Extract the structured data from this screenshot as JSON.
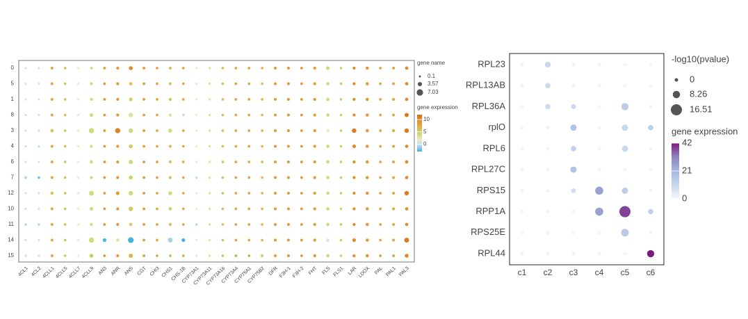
{
  "chart_data": [
    {
      "type": "dotplot",
      "rows": [
        "0",
        "5",
        "1",
        "8",
        "3",
        "4",
        "6",
        "7",
        "12",
        "10",
        "11",
        "14",
        "15"
      ],
      "columns": [
        "4CL1",
        "4CL2",
        "4CLL1",
        "4CLL5",
        "4CLL7",
        "4CLL9",
        "AN3",
        "ANR",
        "ANS",
        "CGT",
        "CHI3",
        "CHS1",
        "CHS-1B",
        "CYP73A1",
        "CYP73A11",
        "CYP73A16",
        "CYP73A4",
        "CYP75A1",
        "CYP75B2",
        "DFR",
        "F3H-1",
        "F3H-2",
        "FHT",
        "FLS",
        "FLS1",
        "LAR",
        "LDOX",
        "PAL",
        "PAL1",
        "PAL3"
      ],
      "size_title": "gene name",
      "size_ticks": [
        0.1,
        3.57,
        7.03
      ],
      "color_title": "gene expression",
      "clim": [
        -3,
        12
      ],
      "cticks": [
        10,
        5,
        0
      ],
      "colormap": [
        "#46b1e1",
        "#b8dde9",
        "#ecebc4",
        "#c7d66a",
        "#e6b150",
        "#e3902c",
        "#d3701a"
      ],
      "size": [
        [
          0.5,
          0.4,
          1.2,
          0.8,
          0.5,
          1,
          1,
          1.5,
          3,
          1,
          1,
          1.5,
          0.8,
          0.4,
          0.6,
          1,
          1,
          1,
          0.8,
          1.2,
          1.2,
          1,
          1.5,
          2.5,
          0.8,
          1.5,
          1.8,
          1,
          1.2,
          2
        ],
        [
          0.5,
          0.4,
          1.2,
          0.8,
          0.5,
          1.5,
          1,
          1.5,
          2,
          1,
          1,
          1.5,
          0.8,
          0.4,
          0.6,
          1,
          1,
          1,
          0.8,
          1.2,
          1.2,
          1,
          1.5,
          2,
          0.8,
          1.5,
          1.8,
          1,
          1.2,
          2
        ],
        [
          0.5,
          0.4,
          1.2,
          0.8,
          0.5,
          1.5,
          1,
          1.5,
          2.5,
          1,
          1,
          1.5,
          0.8,
          0.4,
          0.6,
          1,
          1,
          1,
          0.8,
          1.2,
          1.2,
          1,
          1.5,
          2,
          0.8,
          1.5,
          1.8,
          1,
          1.2,
          2
        ],
        [
          0.5,
          0.4,
          1.2,
          0.8,
          0.5,
          2.5,
          1,
          1.5,
          4,
          1,
          1,
          2,
          1,
          0.4,
          0.6,
          1,
          1,
          1,
          0.8,
          1.2,
          1.2,
          1,
          1.5,
          2,
          0.8,
          1.5,
          1.8,
          1,
          1.2,
          3.5
        ],
        [
          0.5,
          0.4,
          2,
          0.8,
          0.5,
          5,
          1,
          5,
          4,
          1,
          1,
          3,
          0.8,
          0.4,
          0.6,
          1,
          1,
          1,
          0.8,
          1.2,
          1.2,
          1,
          1.5,
          2,
          0.8,
          4,
          1.8,
          1,
          1.2,
          4
        ],
        [
          0.5,
          0.4,
          1.2,
          0.8,
          0.5,
          1.5,
          1,
          1.5,
          3,
          1,
          1,
          1.5,
          0.8,
          0.4,
          0.6,
          1,
          1,
          1,
          0.8,
          1.2,
          1.2,
          1,
          1.5,
          2,
          0.8,
          2.5,
          1.8,
          1,
          1.2,
          2
        ],
        [
          0.5,
          0.4,
          1.2,
          0.8,
          0.5,
          2,
          1,
          1.5,
          3.5,
          1,
          1,
          1.5,
          0.8,
          0.4,
          0.6,
          1,
          1,
          1,
          0.8,
          1.2,
          1.2,
          1,
          1.5,
          2,
          0.8,
          1.5,
          1.8,
          1,
          1.2,
          2
        ],
        [
          0.8,
          1,
          1.2,
          0.8,
          0.5,
          1.5,
          1,
          1.5,
          3,
          1,
          1,
          1.5,
          0.8,
          0.6,
          0.6,
          1,
          1,
          1,
          0.8,
          1.2,
          1.2,
          1,
          1.5,
          2,
          0.8,
          1.5,
          1.8,
          1,
          1.2,
          2
        ],
        [
          0.5,
          0.4,
          1.8,
          0.8,
          0.5,
          4.5,
          1,
          2.5,
          4,
          1,
          1,
          3,
          0.8,
          0.4,
          0.6,
          1,
          1,
          1,
          0.8,
          1.2,
          1.2,
          1,
          1.5,
          2,
          0.8,
          1.5,
          1.8,
          1,
          1.2,
          4
        ],
        [
          0.5,
          0.4,
          1.2,
          0.8,
          0.5,
          2.5,
          1,
          1.5,
          4,
          1,
          1,
          2,
          0.8,
          0.4,
          0.6,
          1,
          1,
          1,
          0.8,
          1.2,
          1.2,
          1,
          1.5,
          2,
          0.8,
          1.5,
          1.8,
          1,
          1.2,
          2
        ],
        [
          0.5,
          0.4,
          1.2,
          0.8,
          0.5,
          1.5,
          1,
          1.5,
          2,
          1,
          1,
          1.5,
          0.8,
          0.4,
          0.6,
          1,
          1,
          1,
          0.8,
          1.2,
          1.2,
          1,
          1.5,
          2,
          0.8,
          1.5,
          1.8,
          1,
          1.2,
          2
        ],
        [
          0.5,
          0.4,
          1.2,
          0.8,
          0.5,
          5,
          2.5,
          2,
          6,
          1,
          1,
          4.5,
          2.5,
          0.4,
          0.6,
          1,
          1,
          1,
          0.8,
          1.2,
          1.2,
          1,
          1.5,
          2,
          0.8,
          2.5,
          1.8,
          1,
          1.2,
          4.5
        ],
        [
          0.5,
          0.4,
          1.2,
          0.8,
          0.5,
          3,
          1,
          1.5,
          3.5,
          1,
          1,
          1.5,
          0.8,
          0.4,
          0.6,
          1,
          1,
          1,
          0.8,
          1.2,
          1.2,
          1,
          1.5,
          2,
          0.8,
          1.5,
          1.8,
          1,
          1.2,
          3
        ]
      ],
      "expression": [
        [
          1,
          1,
          8,
          6,
          2,
          4,
          9,
          9,
          10,
          9,
          8,
          6,
          8,
          2,
          3,
          6,
          8,
          8,
          7,
          9,
          9,
          9,
          9,
          4,
          5,
          10,
          9,
          8,
          8,
          10
        ],
        [
          1,
          1,
          8,
          6,
          2,
          4,
          9,
          9,
          6,
          9,
          8,
          6,
          8,
          2,
          3,
          6,
          8,
          8,
          7,
          9,
          9,
          9,
          9,
          4,
          5,
          10,
          9,
          8,
          8,
          10
        ],
        [
          1,
          1,
          8,
          6,
          2,
          4,
          9,
          9,
          5,
          9,
          8,
          6,
          8,
          2,
          3,
          6,
          8,
          8,
          7,
          9,
          9,
          9,
          9,
          4,
          5,
          10,
          9,
          8,
          8,
          10
        ],
        [
          1,
          1,
          8,
          6,
          2,
          4,
          9,
          9,
          3,
          9,
          8,
          3,
          0,
          2,
          3,
          6,
          8,
          8,
          7,
          9,
          9,
          9,
          9,
          4,
          5,
          10,
          9,
          8,
          8,
          11
        ],
        [
          1,
          1,
          6,
          6,
          2,
          4,
          9,
          10.5,
          4,
          9,
          8,
          4,
          8,
          2,
          3,
          6,
          8,
          8,
          7,
          9,
          9,
          9,
          9,
          2,
          5,
          11,
          9,
          8,
          8,
          11
        ],
        [
          1,
          0,
          8,
          6,
          2,
          4,
          9,
          9,
          5,
          9,
          8,
          6,
          8,
          2,
          3,
          6,
          8,
          8,
          7,
          9,
          9,
          9,
          9,
          4,
          5,
          10,
          9,
          8,
          8,
          10
        ],
        [
          1,
          1,
          8,
          6,
          2,
          4,
          9,
          9,
          4,
          9,
          8,
          6,
          8,
          2,
          3,
          6,
          8,
          8,
          7,
          9,
          9,
          9,
          9,
          4,
          5,
          10,
          9,
          8,
          8,
          10
        ],
        [
          -1,
          -2,
          8,
          6,
          2,
          4,
          9,
          9,
          5,
          9,
          8,
          6,
          8,
          0,
          3,
          6,
          8,
          8,
          7,
          9,
          9,
          9,
          9,
          4,
          5,
          10,
          9,
          8,
          8,
          10
        ],
        [
          1,
          1,
          6,
          6,
          2,
          4,
          9,
          9,
          4,
          9,
          8,
          4,
          8,
          2,
          3,
          6,
          8,
          8,
          7,
          9,
          9,
          9,
          9,
          4,
          5,
          10,
          9,
          8,
          8,
          11
        ],
        [
          1,
          1,
          8,
          6,
          2,
          4,
          9,
          9,
          5,
          9,
          8,
          5,
          8,
          2,
          3,
          6,
          8,
          8,
          7,
          9,
          9,
          9,
          9,
          4,
          5,
          10,
          9,
          8,
          8,
          10
        ],
        [
          -1,
          -1,
          8,
          6,
          2,
          4,
          9,
          9,
          5,
          9,
          8,
          6,
          8,
          -1,
          3,
          6,
          8,
          8,
          7,
          9,
          9,
          9,
          9,
          4,
          5,
          10,
          9,
          8,
          8,
          10
        ],
        [
          1,
          1,
          8,
          6,
          2,
          4,
          -3,
          3,
          -3,
          9,
          8,
          -1,
          -3,
          2,
          3,
          6,
          8,
          8,
          7,
          9,
          9,
          9,
          9,
          1,
          5,
          10,
          9,
          8,
          8,
          11
        ],
        [
          1,
          1,
          8,
          6,
          2,
          5,
          9,
          9,
          7,
          9,
          8,
          6,
          8,
          2,
          3,
          6,
          8,
          8,
          7,
          9,
          9,
          9,
          9,
          4,
          5,
          10,
          9,
          8,
          8,
          10
        ]
      ]
    },
    {
      "type": "dotplot",
      "rows": [
        "RPL23",
        "RPL13AB",
        "RPL36A",
        "rplO",
        "RPL6",
        "RPL27C",
        "RPS15",
        "RPP1A",
        "RPS25E",
        "RPL44"
      ],
      "columns": [
        "c1",
        "c2",
        "c3",
        "c4",
        "c5",
        "c6"
      ],
      "size_title": "-log10(pvalue)",
      "size_ticks": [
        0,
        8.26,
        16.51
      ],
      "color_title": "gene expression",
      "clim": [
        0,
        42
      ],
      "cticks": [
        42,
        21,
        0
      ],
      "colormap": [
        "#f5f8fb",
        "#c6d6ec",
        "#a5b6df",
        "#8c86c0",
        "#7a1a7e"
      ],
      "size": [
        [
          0.5,
          5,
          0.5,
          0.5,
          0.5,
          0.5
        ],
        [
          0.5,
          4,
          0.5,
          0.5,
          0.5,
          0.5
        ],
        [
          0.5,
          4,
          3,
          0.5,
          8,
          0.5
        ],
        [
          0.5,
          0.5,
          6,
          0.5,
          6,
          4
        ],
        [
          0.5,
          0.5,
          4,
          0.5,
          6,
          0.5
        ],
        [
          0.5,
          0.5,
          6,
          0.5,
          0.5,
          0.5
        ],
        [
          0.5,
          0.5,
          3,
          10,
          6,
          0.5
        ],
        [
          0.5,
          0.5,
          0.5,
          10,
          16.5,
          4
        ],
        [
          0.5,
          0.5,
          0.5,
          0.5,
          9,
          0.5
        ],
        [
          0.5,
          0.5,
          0.5,
          0.5,
          0.5,
          8
        ]
      ],
      "expression": [
        [
          1,
          10,
          1,
          1,
          1,
          1
        ],
        [
          1,
          9,
          1,
          1,
          1,
          1
        ],
        [
          1,
          9,
          10,
          1,
          14,
          1
        ],
        [
          1,
          2,
          17,
          1,
          10,
          14
        ],
        [
          1,
          1,
          12,
          1,
          10,
          1
        ],
        [
          1,
          1,
          17,
          1,
          1,
          1
        ],
        [
          1,
          1,
          8,
          26,
          13,
          1
        ],
        [
          1,
          1,
          1,
          26,
          38,
          12
        ],
        [
          1,
          1,
          1,
          1,
          15,
          1
        ],
        [
          1,
          1,
          1,
          1,
          1,
          42
        ]
      ]
    }
  ]
}
